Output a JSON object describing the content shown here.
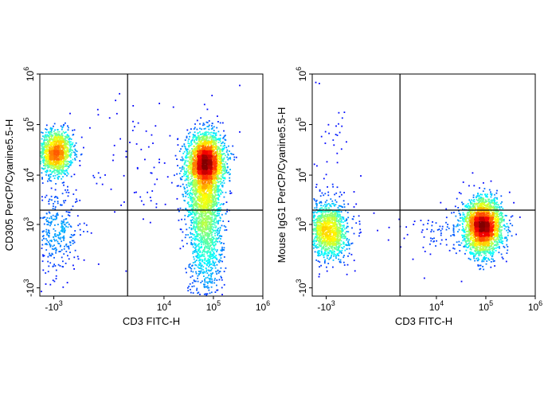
{
  "chart_data": [
    {
      "type": "scatter",
      "subtype": "flow-cytometry-density",
      "xlabel": "CD3 FITC-H",
      "ylabel": "CD305 PerCP/Cyanine5.5-H",
      "x_scale": "biexponential",
      "y_scale": "biexponential",
      "xlim": [
        -2000,
        1000000
      ],
      "ylim": [
        -1500,
        1000000
      ],
      "x_ticks": [
        {
          "value": -1000,
          "base": "-10",
          "exp": "3"
        },
        {
          "value": 10000,
          "base": "10",
          "exp": "4"
        },
        {
          "value": 100000,
          "base": "10",
          "exp": "5"
        },
        {
          "value": 1000000,
          "base": "10",
          "exp": "6"
        }
      ],
      "y_ticks": [
        {
          "value": -1000,
          "base": "-10",
          "exp": "3"
        },
        {
          "value": 1000,
          "base": "10",
          "exp": "3"
        },
        {
          "value": 10000,
          "base": "10",
          "exp": "4"
        },
        {
          "value": 100000,
          "base": "10",
          "exp": "5"
        },
        {
          "value": 1000000,
          "base": "10",
          "exp": "6"
        }
      ],
      "gates": {
        "x": 1800,
        "y": 2000
      },
      "populations": [
        {
          "x": -900,
          "y": 28000,
          "count": 1300,
          "spread": [
            0.35,
            0.45
          ]
        },
        {
          "x": -900,
          "y": 700,
          "count": 350,
          "spread": [
            0.5,
            0.9
          ]
        },
        {
          "x": 70000,
          "y": 18000,
          "count": 2300,
          "spread": [
            0.38,
            0.55
          ]
        },
        {
          "x": 70000,
          "y": 1200,
          "count": 1500,
          "spread": [
            0.35,
            1.5
          ]
        },
        {
          "x": 60000,
          "y": 4000,
          "count": 500,
          "spread": [
            0.35,
            0.8
          ]
        },
        {
          "x": 6000,
          "y": 15000,
          "count": 90,
          "spread": [
            1.5,
            1.5
          ]
        }
      ]
    },
    {
      "type": "scatter",
      "subtype": "flow-cytometry-density",
      "xlabel": "CD3 FITC-H",
      "ylabel": "Mouse IgG1 PerCP/Cyanine5.5-H",
      "x_scale": "biexponential",
      "y_scale": "biexponential",
      "xlim": [
        -2000,
        1000000
      ],
      "ylim": [
        -1500,
        1000000
      ],
      "x_ticks": [
        {
          "value": -1000,
          "base": "-10",
          "exp": "3"
        },
        {
          "value": 10000,
          "base": "10",
          "exp": "4"
        },
        {
          "value": 100000,
          "base": "10",
          "exp": "5"
        },
        {
          "value": 1000000,
          "base": "10",
          "exp": "6"
        }
      ],
      "y_ticks": [
        {
          "value": -1000,
          "base": "-10",
          "exp": "3"
        },
        {
          "value": 1000,
          "base": "10",
          "exp": "3"
        },
        {
          "value": 10000,
          "base": "10",
          "exp": "4"
        },
        {
          "value": 100000,
          "base": "10",
          "exp": "5"
        },
        {
          "value": 1000000,
          "base": "10",
          "exp": "6"
        }
      ],
      "gates": {
        "x": 1800,
        "y": 2000
      },
      "populations": [
        {
          "x": -900,
          "y": 700,
          "count": 1300,
          "spread": [
            0.4,
            0.55
          ]
        },
        {
          "x": 90000,
          "y": 900,
          "count": 2500,
          "spread": [
            0.38,
            0.55
          ]
        },
        {
          "x": 20000,
          "y": 700,
          "count": 120,
          "spread": [
            1.0,
            0.5
          ]
        },
        {
          "x": -900,
          "y": 15000,
          "count": 60,
          "spread": [
            0.6,
            2.0
          ]
        }
      ]
    }
  ]
}
